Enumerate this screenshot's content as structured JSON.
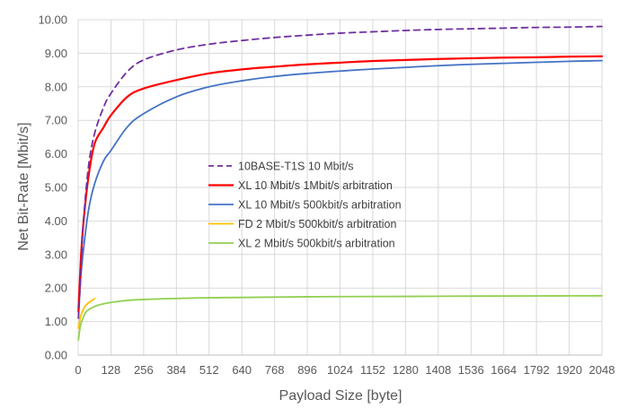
{
  "chart_data": {
    "type": "line",
    "title": "",
    "xlabel": "Payload Size [byte]",
    "ylabel": "Net Bit-Rate [Mbit/s]",
    "xlim": [
      0,
      2048
    ],
    "ylim": [
      0,
      10
    ],
    "xticks": [
      "0",
      "128",
      "256",
      "384",
      "512",
      "640",
      "768",
      "896",
      "1024",
      "1152",
      "1280",
      "1408",
      "1536",
      "1664",
      "1792",
      "1920",
      "2048"
    ],
    "yticks": [
      "0.00",
      "1.00",
      "2.00",
      "3.00",
      "4.00",
      "5.00",
      "6.00",
      "7.00",
      "8.00",
      "9.00",
      "10.00"
    ],
    "grid": true,
    "legend_position": "center-left",
    "series": [
      {
        "name": "10BASE-T1S 10 Mbit/s",
        "color": "#7030A0",
        "dash": true,
        "x": [
          1,
          10,
          20,
          40,
          64,
          100,
          128,
          192,
          256,
          384,
          512,
          640,
          768,
          896,
          1024,
          1152,
          1280,
          1408,
          1536,
          1664,
          1792,
          1920,
          2048
        ],
        "y": [
          1.1,
          2.4,
          3.9,
          5.6,
          6.6,
          7.4,
          7.8,
          8.45,
          8.8,
          9.1,
          9.27,
          9.38,
          9.47,
          9.54,
          9.6,
          9.64,
          9.68,
          9.71,
          9.73,
          9.75,
          9.77,
          9.78,
          9.8
        ]
      },
      {
        "name": "XL 10 Mbit/s 1Mbit/s arbitration",
        "color": "#FF0000",
        "dash": false,
        "x": [
          1,
          10,
          20,
          40,
          64,
          100,
          128,
          192,
          256,
          384,
          512,
          640,
          768,
          896,
          1024,
          1152,
          1280,
          1408,
          1536,
          1664,
          1792,
          1920,
          2048
        ],
        "y": [
          1.3,
          2.8,
          3.9,
          5.3,
          6.3,
          6.8,
          7.15,
          7.7,
          7.95,
          8.2,
          8.4,
          8.52,
          8.6,
          8.67,
          8.72,
          8.77,
          8.8,
          8.83,
          8.85,
          8.87,
          8.88,
          8.9,
          8.91
        ]
      },
      {
        "name": "XL 10 Mbit/s 500kbit/s arbitration",
        "color": "#4472C4",
        "dash": false,
        "x": [
          1,
          10,
          20,
          40,
          64,
          100,
          128,
          192,
          256,
          384,
          512,
          640,
          768,
          896,
          1024,
          1152,
          1280,
          1408,
          1536,
          1664,
          1792,
          1920,
          2048
        ],
        "y": [
          1.1,
          2.3,
          3.1,
          4.3,
          5.1,
          5.8,
          6.1,
          6.8,
          7.2,
          7.7,
          8.0,
          8.18,
          8.31,
          8.4,
          8.47,
          8.53,
          8.58,
          8.63,
          8.67,
          8.7,
          8.73,
          8.76,
          8.78
        ]
      },
      {
        "name": "FD 2 Mbit/s 500kbit/s arbitration",
        "color": "#FFC000",
        "dash": false,
        "x": [
          1,
          8,
          16,
          24,
          32,
          48,
          64
        ],
        "y": [
          0.8,
          1.1,
          1.3,
          1.42,
          1.5,
          1.6,
          1.68
        ]
      },
      {
        "name": "XL 2 Mbit/s 500kbit/s arbitration",
        "color": "#92D050",
        "dash": false,
        "x": [
          1,
          8,
          16,
          32,
          64,
          100,
          128,
          192,
          256,
          384,
          512,
          640,
          768,
          896,
          1024,
          1280,
          1536,
          1792,
          2048
        ],
        "y": [
          0.45,
          0.85,
          1.05,
          1.3,
          1.45,
          1.53,
          1.57,
          1.63,
          1.66,
          1.69,
          1.71,
          1.72,
          1.73,
          1.74,
          1.745,
          1.75,
          1.76,
          1.765,
          1.77
        ]
      }
    ]
  }
}
